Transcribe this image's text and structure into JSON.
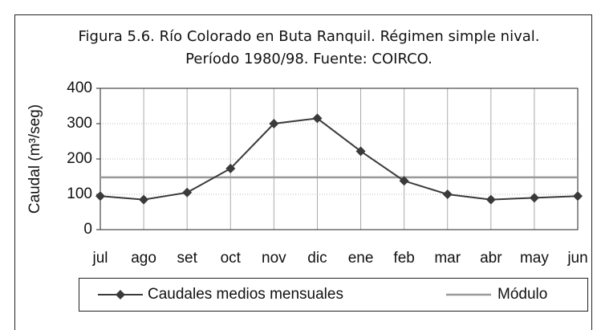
{
  "chart_data": {
    "type": "line",
    "title": [
      "Figura 5.6. Río Colorado en Buta Ranquil. Régimen simple nival.",
      "Período 1980/98. Fuente: COIRCO."
    ],
    "y_label": "Caudal (m³/seg)",
    "categories": [
      "jul",
      "ago",
      "set",
      "oct",
      "nov",
      "dic",
      "ene",
      "feb",
      "mar",
      "abr",
      "may",
      "jun"
    ],
    "series": [
      {
        "name": "Caudales medios mensuales",
        "color": "#3a3a3a",
        "values": [
          95,
          85,
          105,
          173,
          300,
          315,
          222,
          138,
          100,
          85,
          90,
          95
        ]
      },
      {
        "name": "Módulo",
        "color": "#999999",
        "value": 148
      }
    ],
    "ylim": [
      0,
      400
    ],
    "yticks": [
      0,
      100,
      200,
      300,
      400
    ],
    "grid": true
  }
}
